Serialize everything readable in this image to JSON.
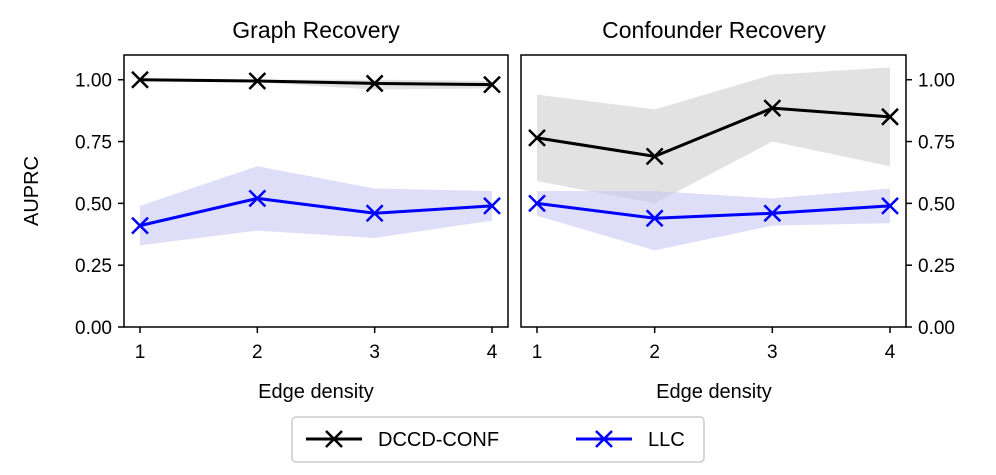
{
  "chart_data": [
    {
      "type": "line",
      "title": "Graph Recovery",
      "xlabel": "Edge density",
      "ylabel": "AUPRC",
      "x": [
        1,
        2,
        3,
        4
      ],
      "xticks": [
        "1",
        "2",
        "3",
        "4"
      ],
      "ylim": [
        0,
        1.1
      ],
      "yticks": [
        "0.00",
        "0.25",
        "0.50",
        "0.75",
        "1.00"
      ],
      "ytick_values": [
        0,
        0.25,
        0.5,
        0.75,
        1.0
      ],
      "yaxis_side": "left",
      "series": [
        {
          "name": "DCCD-CONF",
          "color": "#000000",
          "band_color": "#cfcfcf",
          "values": [
            1.0,
            0.995,
            0.985,
            0.98
          ],
          "lower": [
            1.0,
            0.99,
            0.96,
            0.965
          ],
          "upper": [
            1.0,
            1.0,
            1.0,
            0.995
          ]
        },
        {
          "name": "LLC",
          "color": "#0000ff",
          "band_color": "#c8c8f5",
          "values": [
            0.41,
            0.52,
            0.46,
            0.49
          ],
          "lower": [
            0.33,
            0.39,
            0.36,
            0.43
          ],
          "upper": [
            0.49,
            0.65,
            0.56,
            0.55
          ]
        }
      ]
    },
    {
      "type": "line",
      "title": "Confounder Recovery",
      "xlabel": "Edge density",
      "ylabel": "",
      "x": [
        1,
        2,
        3,
        4
      ],
      "xticks": [
        "1",
        "2",
        "3",
        "4"
      ],
      "ylim": [
        0,
        1.1
      ],
      "yticks": [
        "0.00",
        "0.25",
        "0.50",
        "0.75",
        "1.00"
      ],
      "ytick_values": [
        0,
        0.25,
        0.5,
        0.75,
        1.0
      ],
      "yaxis_side": "right",
      "series": [
        {
          "name": "DCCD-CONF",
          "color": "#000000",
          "band_color": "#cfcfcf",
          "values": [
            0.765,
            0.69,
            0.885,
            0.85
          ],
          "lower": [
            0.59,
            0.5,
            0.75,
            0.65
          ],
          "upper": [
            0.94,
            0.88,
            1.02,
            1.05
          ]
        },
        {
          "name": "LLC",
          "color": "#0000ff",
          "band_color": "#c8c8f5",
          "values": [
            0.5,
            0.44,
            0.46,
            0.49
          ],
          "lower": [
            0.45,
            0.31,
            0.41,
            0.42
          ],
          "upper": [
            0.55,
            0.55,
            0.52,
            0.56
          ]
        }
      ]
    }
  ],
  "legend": {
    "placement": "bottom-center",
    "items": [
      {
        "label": "DCCD-CONF",
        "color": "#000000"
      },
      {
        "label": "LLC",
        "color": "#0000ff"
      }
    ]
  }
}
